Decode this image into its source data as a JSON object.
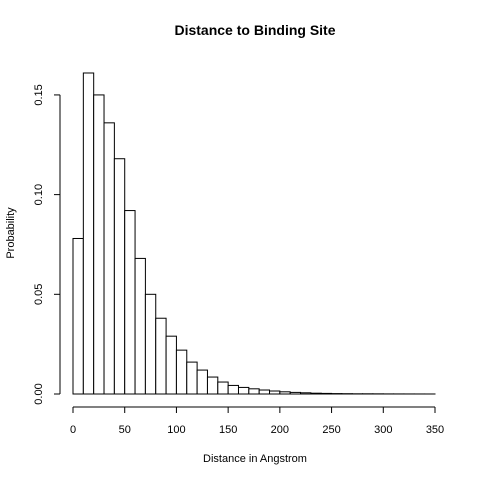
{
  "chart_data": {
    "type": "bar",
    "title": "Distance to Binding Site",
    "xlabel": "Distance in Angstrom",
    "ylabel": "Probability",
    "bin_width": 10,
    "bin_starts": [
      0,
      10,
      20,
      30,
      40,
      50,
      60,
      70,
      80,
      90,
      100,
      110,
      120,
      130,
      140,
      150,
      160,
      170,
      180,
      190,
      200,
      210,
      220,
      230,
      240,
      250,
      260,
      270,
      280,
      290,
      300,
      310,
      320,
      330,
      340
    ],
    "values": [
      0.078,
      0.161,
      0.15,
      0.136,
      0.118,
      0.092,
      0.068,
      0.05,
      0.038,
      0.029,
      0.022,
      0.016,
      0.012,
      0.0085,
      0.006,
      0.0043,
      0.0033,
      0.0026,
      0.002,
      0.0015,
      0.0011,
      0.0008,
      0.0006,
      0.0004,
      0.0003,
      0.0002,
      0.00015,
      0.0001,
      0.0001,
      8e-05,
      5e-05,
      4e-05,
      3e-05,
      2e-05,
      1e-05
    ],
    "xlim": [
      0,
      350
    ],
    "ylim": [
      0,
      0.162
    ],
    "x_ticks": [
      0,
      50,
      100,
      150,
      200,
      250,
      300,
      350
    ],
    "x_tick_labels": [
      "0",
      "50",
      "100",
      "150",
      "200",
      "250",
      "300",
      "350"
    ],
    "y_ticks": [
      0,
      0.05,
      0.1,
      0.15
    ],
    "y_tick_labels": [
      "0.00",
      "0.05",
      "0.10",
      "0.15"
    ],
    "grid": false,
    "bar_fill": "#ffffff",
    "bar_stroke": "#000000"
  }
}
